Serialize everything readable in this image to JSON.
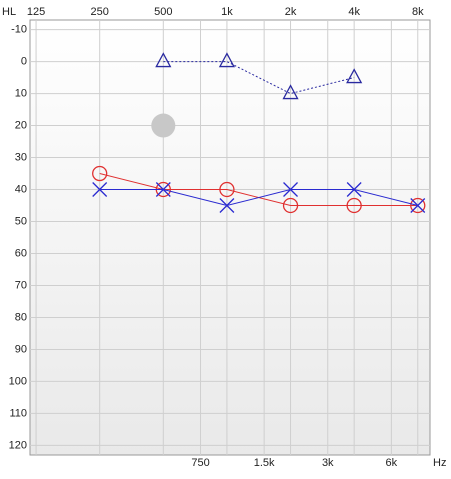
{
  "chart_data": {
    "type": "audiogram",
    "y_label": "HL",
    "x_label": "Hz",
    "xscale": "log",
    "xlim": [
      117,
      9140
    ],
    "xticks": [
      125,
      250,
      500,
      {
        "value": 1000,
        "label": "1k"
      },
      {
        "value": 2000,
        "label": "2k"
      },
      {
        "value": 4000,
        "label": "4k"
      },
      {
        "value": 8000,
        "label": "8k"
      }
    ],
    "xticks_bottom": [
      750,
      {
        "value": 1500,
        "label": "1.5k"
      },
      {
        "value": 3000,
        "label": "3k"
      },
      {
        "value": 6000,
        "label": "6k"
      }
    ],
    "ylim": [
      -13,
      123
    ],
    "y_inverted": true,
    "yticks": [
      -10,
      0,
      10,
      20,
      30,
      40,
      50,
      60,
      70,
      80,
      90,
      100,
      110,
      120
    ],
    "grid": true,
    "series": [
      {
        "color": "#e03030",
        "marker": "circle",
        "line": "solid",
        "x": [
          250,
          500,
          1000,
          2000,
          4000,
          8000
        ],
        "values": [
          35,
          40,
          40,
          45,
          45,
          45
        ]
      },
      {
        "color": "#2a2ad0",
        "marker": "x",
        "line": "solid",
        "x": [
          250,
          500,
          1000,
          2000,
          4000,
          8000
        ],
        "values": [
          40,
          40,
          45,
          40,
          40,
          45
        ]
      },
      {
        "color": "#2a2aa0",
        "marker": "triangle",
        "line": "dashed",
        "x": [
          500,
          1000,
          2000,
          4000
        ],
        "values": [
          0,
          0,
          10,
          5
        ]
      },
      {
        "color": "#c8c8c8",
        "marker": "dot",
        "line": "none",
        "x": [
          500
        ],
        "values": [
          20
        ]
      }
    ]
  }
}
